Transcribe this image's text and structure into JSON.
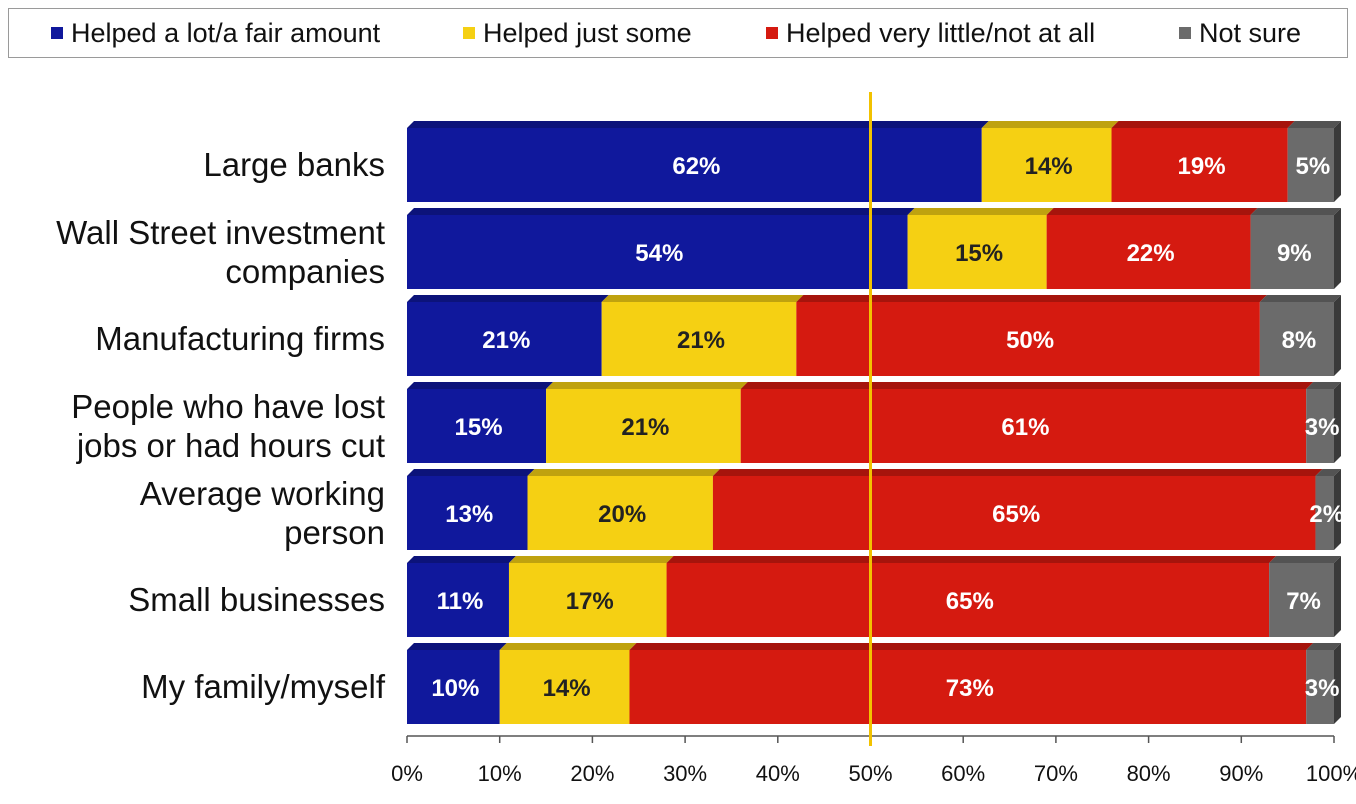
{
  "legend": [
    {
      "label": "Helped a lot/a fair amount",
      "color": "#10189c"
    },
    {
      "label": "Helped just some",
      "color": "#f5d013"
    },
    {
      "label": "Helped very little/not at all",
      "color": "#d51a10"
    },
    {
      "label": "Not sure",
      "color": "#6b6b6b"
    }
  ],
  "chart_data": {
    "type": "bar",
    "orientation": "horizontal",
    "stacked": true,
    "categories": [
      [
        "Large banks"
      ],
      [
        "Wall Street investment",
        "companies"
      ],
      [
        "Manufacturing firms"
      ],
      [
        "People who have lost",
        "jobs or had hours cut"
      ],
      [
        "Average working",
        "person"
      ],
      [
        "Small businesses"
      ],
      [
        "My family/myself"
      ]
    ],
    "series": [
      {
        "name": "Helped a lot/a fair amount",
        "values": [
          62,
          54,
          21,
          15,
          13,
          11,
          10
        ],
        "labels": [
          "62%",
          "54%",
          "21%",
          "15%",
          "13%",
          "11%",
          "10%"
        ]
      },
      {
        "name": "Helped just some",
        "values": [
          14,
          15,
          21,
          21,
          20,
          17,
          14
        ],
        "labels": [
          "14%",
          "15%",
          "21%",
          "21%",
          "20%",
          "17%",
          "14%"
        ]
      },
      {
        "name": "Helped very little/not at all",
        "values": [
          19,
          22,
          50,
          61,
          65,
          65,
          73
        ],
        "labels": [
          "19%",
          "22%",
          "50%",
          "61%",
          "65%",
          "65%",
          "73%"
        ]
      },
      {
        "name": "Not sure",
        "values": [
          5,
          9,
          8,
          3,
          2,
          7,
          3
        ],
        "labels": [
          "5%",
          "9%",
          "8%",
          "3%",
          "2%",
          "7%",
          "3%"
        ]
      }
    ],
    "xlim": [
      0,
      100
    ],
    "xticks": [
      "0%",
      "10%",
      "20%",
      "30%",
      "40%",
      "50%",
      "60%",
      "70%",
      "80%",
      "90%",
      "100%"
    ],
    "reference_line": {
      "value": 50,
      "color": "#f2c200"
    },
    "legend_position": "top"
  }
}
